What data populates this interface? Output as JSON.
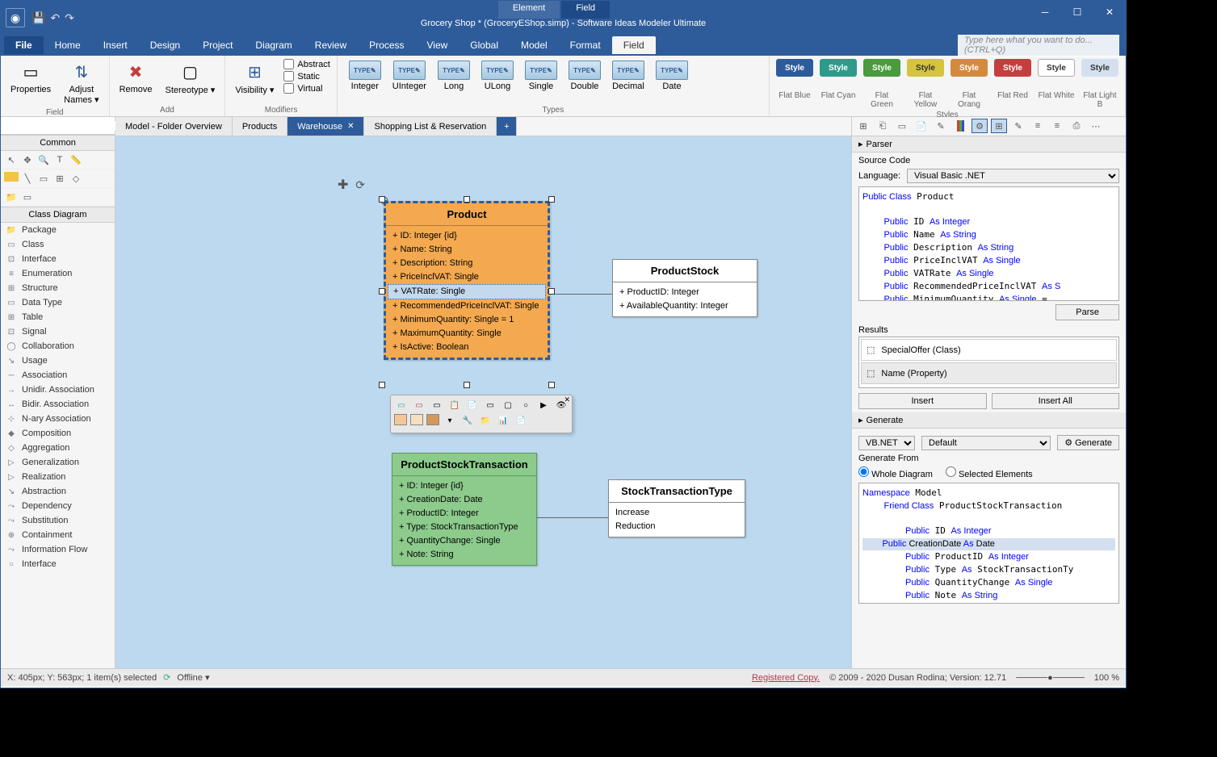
{
  "titlebar": {
    "context_tabs": [
      "Element",
      "Field"
    ],
    "active_context": 1,
    "doc_title": "Grocery Shop * (GroceryEShop.simp) - Software Ideas Modeler Ultimate"
  },
  "menu": {
    "items": [
      "File",
      "Home",
      "Insert",
      "Design",
      "Project",
      "Diagram",
      "Review",
      "Process",
      "View",
      "Global",
      "Model",
      "Format",
      "Field"
    ],
    "active": "Field",
    "search_placeholder": "Type here what you want to do...   (CTRL+Q)"
  },
  "ribbon": {
    "groups": {
      "field": {
        "label": "Field",
        "btns": [
          {
            "label": "Properties"
          },
          {
            "label": "Adjust\nNames ▾"
          }
        ]
      },
      "add": {
        "label": "Add",
        "btns": [
          {
            "label": "Remove"
          },
          {
            "label": "Stereotype ▾"
          }
        ]
      },
      "modifiers": {
        "label": "Modifiers",
        "visibility": "Visibility ▾",
        "chks": [
          "Abstract",
          "Static",
          "Virtual"
        ]
      },
      "types": {
        "label": "Types",
        "items": [
          "Integer",
          "UInteger",
          "Long",
          "ULong",
          "Single",
          "Double",
          "Decimal",
          "Date"
        ]
      },
      "styles": {
        "label": "Styles",
        "items": [
          {
            "name": "Style",
            "label": "Flat Blue",
            "bg": "#2e5c9a",
            "fg": "#fff"
          },
          {
            "name": "Style",
            "label": "Flat Cyan",
            "bg": "#2e9a8a",
            "fg": "#fff"
          },
          {
            "name": "Style",
            "label": "Flat Green",
            "bg": "#4a9a3e",
            "fg": "#fff"
          },
          {
            "name": "Style",
            "label": "Flat Yellow",
            "bg": "#d4c43e",
            "fg": "#333"
          },
          {
            "name": "Style",
            "label": "Flat Orang",
            "bg": "#d48a3e",
            "fg": "#fff"
          },
          {
            "name": "Style",
            "label": "Flat Red",
            "bg": "#c43e3e",
            "fg": "#fff"
          },
          {
            "name": "Style",
            "label": "Flat White",
            "bg": "#fff",
            "fg": "#333"
          },
          {
            "name": "Style",
            "label": "Flat Light B",
            "bg": "#d4e0ef",
            "fg": "#333"
          }
        ]
      }
    }
  },
  "left": {
    "common": "Common",
    "class_diagram": "Class Diagram",
    "items": [
      "Package",
      "Class",
      "Interface",
      "Enumeration",
      "Structure",
      "Data Type",
      "Table",
      "Signal",
      "Collaboration",
      "Usage",
      "Association",
      "Unidir. Association",
      "Bidir. Association",
      "N-ary Association",
      "Composition",
      "Aggregation",
      "Generalization",
      "Realization",
      "Abstraction",
      "Dependency",
      "Substitution",
      "Containment",
      "Information Flow",
      "Interface"
    ]
  },
  "tabs": {
    "items": [
      "Model - Folder Overview",
      "Products",
      "Warehouse",
      "Shopping List & Reservation"
    ],
    "active": 2
  },
  "diagram": {
    "product": {
      "title": "Product",
      "rows": [
        "+ ID: Integer {id}",
        "+ Name: String",
        "+ Description: String",
        "+ PriceInclVAT: Single",
        "+ VATRate: Single",
        "+ RecommendedPriceInclVAT: Single",
        "+ MinimumQuantity: Single = 1",
        "+ MaximumQuantity: Single",
        "+ IsActive: Boolean"
      ],
      "selected_row": 4
    },
    "stock": {
      "title": "ProductStock",
      "rows": [
        "+ ProductID: Integer",
        "+ AvailableQuantity: Integer"
      ]
    },
    "trans": {
      "title": "ProductStockTransaction",
      "rows": [
        "+ ID: Integer {id}",
        "+ CreationDate: Date",
        "+ ProductID: Integer",
        "+ Type: StockTransactionType",
        "+ QuantityChange: Single",
        "+ Note: String"
      ]
    },
    "enum": {
      "title": "StockTransactionType",
      "rows": [
        "Increase",
        "Reduction"
      ]
    }
  },
  "right": {
    "parser": {
      "hdr": "Parser",
      "source_code": "Source Code",
      "language_lbl": "Language:",
      "language_val": "Visual Basic .NET",
      "parse_btn": "Parse",
      "results_lbl": "Results",
      "results": [
        "SpecialOffer (Class)",
        "Name (Property)"
      ],
      "insert": "Insert",
      "insert_all": "Insert All"
    },
    "generate": {
      "hdr": "Generate",
      "lang": "VB.NET",
      "template": "Default",
      "gen_btn": "Generate",
      "from_lbl": "Generate From",
      "radio1": "Whole Diagram",
      "radio2": "Selected Elements"
    }
  },
  "status": {
    "coords": "X: 405px; Y: 563px; 1 item(s) selected",
    "offline": "Offline ▾",
    "registered": "Registered Copy.",
    "copyright": "© 2009 - 2020 Dusan Rodina; Version: 12.71",
    "zoom": "100 %"
  }
}
